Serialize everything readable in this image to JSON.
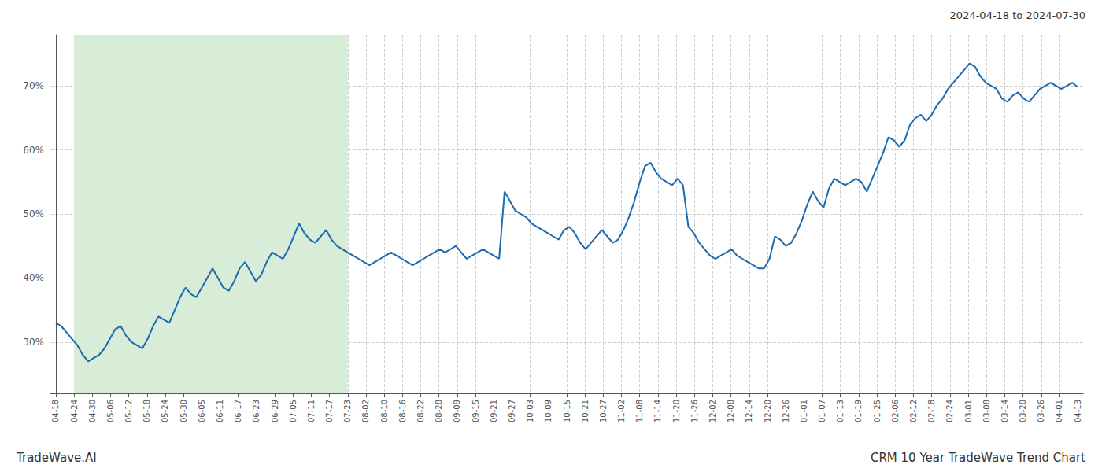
{
  "chart_data": {
    "type": "line",
    "title": "CRM 10 Year TradeWave Trend Chart",
    "subtitle": "2024-04-18 to 2024-07-30",
    "annotations": [
      "TradeWave.AI"
    ],
    "color": "#1c6ab0",
    "grid": true,
    "highlight": {
      "x": [
        3.375,
        54
      ],
      "color": "#d8edd8"
    },
    "xlim": [
      -1,
      190
    ],
    "xticks": [
      {
        "value": 0,
        "label": "04-18"
      },
      {
        "value": 3.375,
        "label": "04-24"
      },
      {
        "value": 6.75,
        "label": "04-30"
      },
      {
        "value": 10.125,
        "label": "05-06"
      },
      {
        "value": 13.5,
        "label": "05-12"
      },
      {
        "value": 16.875,
        "label": "05-18"
      },
      {
        "value": 20.25,
        "label": "05-24"
      },
      {
        "value": 23.625,
        "label": "05-30"
      },
      {
        "value": 27,
        "label": "06-05"
      },
      {
        "value": 30.375,
        "label": "06-11"
      },
      {
        "value": 33.75,
        "label": "06-17"
      },
      {
        "value": 37.125,
        "label": "06-23"
      },
      {
        "value": 40.5,
        "label": "06-29"
      },
      {
        "value": 43.875,
        "label": "07-05"
      },
      {
        "value": 47.25,
        "label": "07-11"
      },
      {
        "value": 50.625,
        "label": "07-17"
      },
      {
        "value": 54,
        "label": "07-23"
      },
      {
        "value": 57.375,
        "label": "08-02"
      },
      {
        "value": 60.75,
        "label": "08-10"
      },
      {
        "value": 64.125,
        "label": "08-16"
      },
      {
        "value": 67.5,
        "label": "08-22"
      },
      {
        "value": 70.875,
        "label": "08-28"
      },
      {
        "value": 74.25,
        "label": "09-09"
      },
      {
        "value": 77.625,
        "label": "09-15"
      },
      {
        "value": 81,
        "label": "09-21"
      },
      {
        "value": 84.375,
        "label": "09-27"
      },
      {
        "value": 87.75,
        "label": "10-03"
      },
      {
        "value": 91.125,
        "label": "10-09"
      },
      {
        "value": 94.5,
        "label": "10-15"
      },
      {
        "value": 97.875,
        "label": "10-21"
      },
      {
        "value": 101.25,
        "label": "10-27"
      },
      {
        "value": 104.625,
        "label": "11-02"
      },
      {
        "value": 108,
        "label": "11-08"
      },
      {
        "value": 111.375,
        "label": "11-14"
      },
      {
        "value": 114.75,
        "label": "11-20"
      },
      {
        "value": 118.125,
        "label": "11-26"
      },
      {
        "value": 121.5,
        "label": "12-02"
      },
      {
        "value": 124.875,
        "label": "12-08"
      },
      {
        "value": 128.25,
        "label": "12-14"
      },
      {
        "value": 131.625,
        "label": "12-20"
      },
      {
        "value": 135,
        "label": "12-26"
      },
      {
        "value": 138.375,
        "label": "01-01"
      },
      {
        "value": 141.75,
        "label": "01-07"
      },
      {
        "value": 145.125,
        "label": "01-13"
      },
      {
        "value": 148.5,
        "label": "01-19"
      },
      {
        "value": 151.875,
        "label": "01-25"
      },
      {
        "value": 155.25,
        "label": "02-06"
      },
      {
        "value": 158.625,
        "label": "02-12"
      },
      {
        "value": 162,
        "label": "02-18"
      },
      {
        "value": 165.375,
        "label": "02-24"
      },
      {
        "value": 168.75,
        "label": "03-01"
      },
      {
        "value": 172.125,
        "label": "03-08"
      },
      {
        "value": 175.5,
        "label": "03-14"
      },
      {
        "value": 178.875,
        "label": "03-20"
      },
      {
        "value": 182.25,
        "label": "03-26"
      },
      {
        "value": 185.625,
        "label": "04-01"
      },
      {
        "value": 189,
        "label": "04-13"
      }
    ],
    "ylim": [
      22,
      78
    ],
    "yticks": [
      {
        "value": 30,
        "label": "30%"
      },
      {
        "value": 40,
        "label": "40%"
      },
      {
        "value": 50,
        "label": "50%"
      },
      {
        "value": 60,
        "label": "60%"
      },
      {
        "value": 70,
        "label": "70%"
      }
    ],
    "x": [
      0,
      1,
      2,
      3,
      4,
      5,
      6,
      7,
      8,
      9,
      10,
      11,
      12,
      13,
      14,
      15,
      16,
      17,
      18,
      19,
      20,
      21,
      22,
      23,
      24,
      25,
      26,
      27,
      28,
      29,
      30,
      31,
      32,
      33,
      34,
      35,
      36,
      37,
      38,
      39,
      40,
      41,
      42,
      43,
      44,
      45,
      46,
      47,
      48,
      49,
      50,
      51,
      52,
      53,
      54,
      55,
      56,
      57,
      58,
      59,
      60,
      61,
      62,
      63,
      64,
      65,
      66,
      67,
      68,
      69,
      70,
      71,
      72,
      73,
      74,
      75,
      76,
      77,
      78,
      79,
      80,
      81,
      82,
      83,
      84,
      85,
      86,
      87,
      88,
      89,
      90,
      91,
      92,
      93,
      94,
      95,
      96,
      97,
      98,
      99,
      100,
      101,
      102,
      103,
      104,
      105,
      106,
      107,
      108,
      109,
      110,
      111,
      112,
      113,
      114,
      115,
      116,
      117,
      118,
      119,
      120,
      121,
      122,
      123,
      124,
      125,
      126,
      127,
      128,
      129,
      130,
      131,
      132,
      133,
      134,
      135,
      136,
      137,
      138,
      139,
      140,
      141,
      142,
      143,
      144,
      145,
      146,
      147,
      148,
      149,
      150,
      151,
      152,
      153,
      154,
      155,
      156,
      157,
      158,
      159,
      160,
      161,
      162,
      163,
      164,
      165,
      166,
      167,
      168,
      169,
      170,
      171,
      172,
      173,
      174,
      175,
      176,
      177,
      178,
      179,
      180,
      181,
      182,
      183,
      184,
      185,
      186,
      187,
      188,
      189
    ],
    "values": [
      33.0,
      32.5,
      31.5,
      30.5,
      29.5,
      28.0,
      27.0,
      27.5,
      28.0,
      29.0,
      30.5,
      32.0,
      32.5,
      31.0,
      30.0,
      29.5,
      29.0,
      30.5,
      32.5,
      34.0,
      33.5,
      33.0,
      35.0,
      37.0,
      38.5,
      37.5,
      37.0,
      38.5,
      40.0,
      41.5,
      40.0,
      38.5,
      38.0,
      39.5,
      41.5,
      42.5,
      41.0,
      39.5,
      40.5,
      42.5,
      44.0,
      43.5,
      43.0,
      44.5,
      46.5,
      48.5,
      47.0,
      46.0,
      45.5,
      46.5,
      47.5,
      46.0,
      45.0,
      44.5,
      44.0,
      43.5,
      43.0,
      42.5,
      42.0,
      42.5,
      43.0,
      43.5,
      44.0,
      43.5,
      43.0,
      42.5,
      42.0,
      42.5,
      43.0,
      43.5,
      44.0,
      44.5,
      44.0,
      44.5,
      45.0,
      44.0,
      43.0,
      43.5,
      44.0,
      44.5,
      44.0,
      43.5,
      43.0,
      53.5,
      52.0,
      50.5,
      50.0,
      49.5,
      48.5,
      48.0,
      47.5,
      47.0,
      46.5,
      46.0,
      47.5,
      48.0,
      47.0,
      45.5,
      44.5,
      45.5,
      46.5,
      47.5,
      46.5,
      45.5,
      46.0,
      47.5,
      49.5,
      52.0,
      55.0,
      57.5,
      58.0,
      56.5,
      55.5,
      55.0,
      54.5,
      55.5,
      54.5,
      48.0,
      47.0,
      45.5,
      44.5,
      43.5,
      43.0,
      43.5,
      44.0,
      44.5,
      43.5,
      43.0,
      42.5,
      42.0,
      41.5,
      41.5,
      43.0,
      46.5,
      46.0,
      45.0,
      45.5,
      47.0,
      49.0,
      51.5,
      53.5,
      52.0,
      51.0,
      54.0,
      55.5,
      55.0,
      54.5,
      55.0,
      55.5,
      55.0,
      53.5,
      55.5,
      57.5,
      59.5,
      62.0,
      61.5,
      60.5,
      61.5,
      64.0,
      65.0,
      65.5,
      64.5,
      65.5,
      67.0,
      68.0,
      69.5,
      70.5,
      71.5,
      72.5,
      73.5,
      73.0,
      71.5,
      70.5,
      70.0,
      69.5,
      68.0,
      67.5,
      68.5,
      69.0,
      68.0,
      67.5,
      68.5,
      69.5,
      70.0,
      70.5,
      70.0,
      69.5,
      70.0,
      70.5,
      69.8
    ]
  }
}
